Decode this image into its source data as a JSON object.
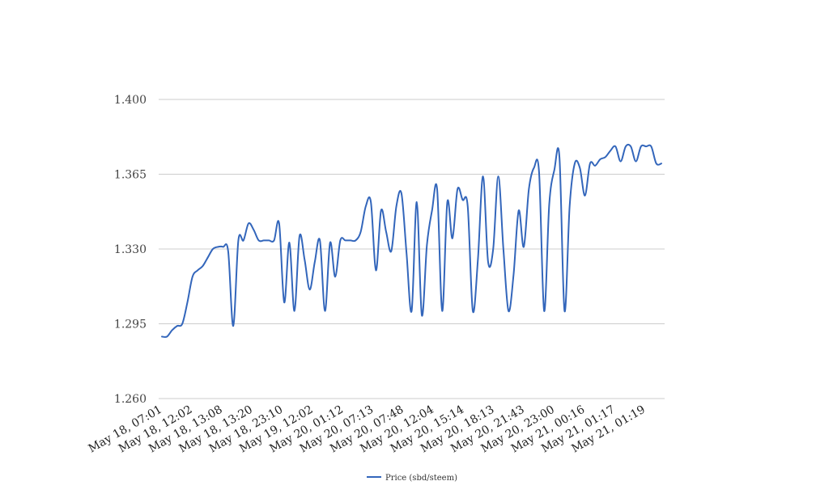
{
  "chart_data": {
    "type": "line",
    "title": "",
    "xlabel": "",
    "ylabel": "",
    "ylim": [
      1.26,
      1.4
    ],
    "yticks": [
      "1.260",
      "1.295",
      "1.330",
      "1.365",
      "1.400"
    ],
    "x_tick_labels": [
      "May 18, 07:01",
      "May 18, 12:02",
      "May 18, 13:08",
      "May 18, 13:20",
      "May 18, 23:10",
      "May 19, 12:02",
      "May 20, 01:12",
      "May 20, 07:13",
      "May 20, 07:48",
      "May 20, 12:04",
      "May 20, 15:14",
      "May 20, 18:13",
      "May 20, 21:43",
      "May 20, 23:00",
      "May 21, 00:16",
      "May 21, 01:17",
      "May 21, 01:19"
    ],
    "grid": true,
    "legend_position": "bottom",
    "series": [
      {
        "name": "Price (sbd/steem)",
        "color": "#3366bb",
        "values": [
          1.289,
          1.289,
          1.292,
          1.294,
          1.295,
          1.305,
          1.317,
          1.32,
          1.322,
          1.326,
          1.33,
          1.331,
          1.331,
          1.329,
          1.294,
          1.334,
          1.334,
          1.342,
          1.339,
          1.334,
          1.334,
          1.334,
          1.334,
          1.342,
          1.305,
          1.333,
          1.301,
          1.336,
          1.325,
          1.311,
          1.324,
          1.334,
          1.301,
          1.333,
          1.317,
          1.334,
          1.334,
          1.334,
          1.334,
          1.338,
          1.35,
          1.352,
          1.32,
          1.348,
          1.338,
          1.329,
          1.35,
          1.356,
          1.328,
          1.301,
          1.352,
          1.299,
          1.332,
          1.348,
          1.358,
          1.301,
          1.352,
          1.335,
          1.358,
          1.353,
          1.35,
          1.301,
          1.325,
          1.364,
          1.324,
          1.33,
          1.364,
          1.33,
          1.301,
          1.318,
          1.348,
          1.331,
          1.358,
          1.368,
          1.366,
          1.301,
          1.351,
          1.367,
          1.373,
          1.301,
          1.35,
          1.37,
          1.368,
          1.355,
          1.37,
          1.369,
          1.372,
          1.373,
          1.376,
          1.378,
          1.371,
          1.378,
          1.378,
          1.371,
          1.378,
          1.378,
          1.378,
          1.37,
          1.37
        ]
      }
    ]
  }
}
